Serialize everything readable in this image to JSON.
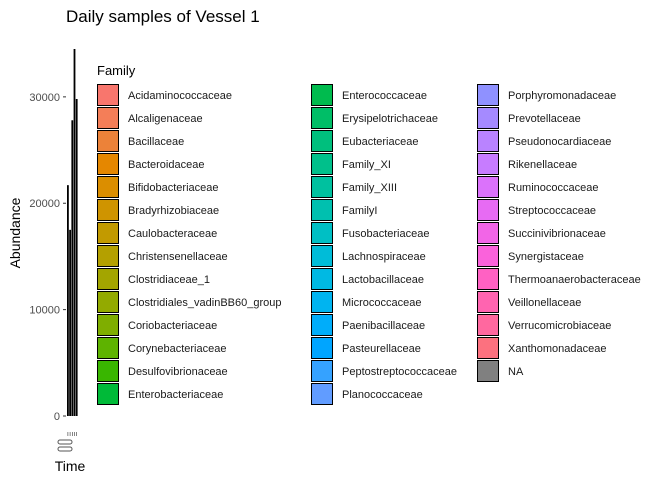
{
  "chart_data": {
    "type": "bar",
    "stacked": true,
    "title": "Daily samples of Vessel 1",
    "xlabel": "Time",
    "ylabel": "Abundance",
    "ylim": [
      0,
      34500
    ],
    "y_ticks": [
      0,
      10000,
      20000,
      30000
    ],
    "y_tick_labels": [
      "0",
      "10000",
      "20000",
      "30000"
    ],
    "x_tick_labels": [
      "",
      "",
      "",
      "",
      ""
    ],
    "totals": [
      21700,
      17500,
      27800,
      34500,
      29800
    ],
    "legend": {
      "title": "Family",
      "position": "right",
      "entries": [
        {
          "label": "Acidaminococcaceae",
          "color": "#F8766D"
        },
        {
          "label": "Alcaligenaceae",
          "color": "#F47E58"
        },
        {
          "label": "Bacillaceae",
          "color": "#EC8239"
        },
        {
          "label": "Bacteroidaceae",
          "color": "#E58700"
        },
        {
          "label": "Bifidobacteriaceae",
          "color": "#DB8E00"
        },
        {
          "label": "Bradyrhizobiaceae",
          "color": "#CF9400"
        },
        {
          "label": "Caulobacteraceae",
          "color": "#C29A00"
        },
        {
          "label": "Christensenellaceae",
          "color": "#B4A000"
        },
        {
          "label": "Clostridiaceae_1",
          "color": "#A3A500"
        },
        {
          "label": "Clostridiales_vadinBB60_group",
          "color": "#93AA00"
        },
        {
          "label": "Coriobacteriaceae",
          "color": "#7FAE00"
        },
        {
          "label": "Corynebacteriaceae",
          "color": "#5EB300"
        },
        {
          "label": "Desulfovibrionaceae",
          "color": "#39B600"
        },
        {
          "label": "Enterobacteriaceae",
          "color": "#00BA38"
        },
        {
          "label": "Enterococcaceae",
          "color": "#00BB4E"
        },
        {
          "label": "Erysipelotrichaceae",
          "color": "#00BE67"
        },
        {
          "label": "Eubacteriaceae",
          "color": "#00BF7D"
        },
        {
          "label": "Family_XI",
          "color": "#00C08B"
        },
        {
          "label": "Family_XIII",
          "color": "#00C19F"
        },
        {
          "label": "FamilyI",
          "color": "#00C0AF"
        },
        {
          "label": "Fusobacteriaceae",
          "color": "#00BFC4"
        },
        {
          "label": "Lachnospiraceae",
          "color": "#00BCD8"
        },
        {
          "label": "Lactobacillaceae",
          "color": "#00B9E3"
        },
        {
          "label": "Micrococcaceae",
          "color": "#00B4F0"
        },
        {
          "label": "Paenibacillaceae",
          "color": "#00ADFA"
        },
        {
          "label": "Pasteurellaceae",
          "color": "#00A5FF"
        },
        {
          "label": "Peptostreptococcaceae",
          "color": "#35A2FF"
        },
        {
          "label": "Planococcaceae",
          "color": "#619CFF"
        },
        {
          "label": "Porphyromonadaceae",
          "color": "#8F91FF"
        },
        {
          "label": "Prevotellaceae",
          "color": "#A58AFF"
        },
        {
          "label": "Pseudonocardiaceae",
          "color": "#B983FF"
        },
        {
          "label": "Rikenellaceae",
          "color": "#C77CFF"
        },
        {
          "label": "Ruminococcaceae",
          "color": "#DB72FB"
        },
        {
          "label": "Streptococcaceae",
          "color": "#E76BF3"
        },
        {
          "label": "Succinivibrionaceae",
          "color": "#F265E7"
        },
        {
          "label": "Synergistaceae",
          "color": "#FA62DB"
        },
        {
          "label": "Thermoanaerobacteraceae",
          "color": "#FF61C3"
        },
        {
          "label": "Veillonellaceae",
          "color": "#FF64B0"
        },
        {
          "label": "Verrucomicrobiaceae",
          "color": "#FF689F"
        },
        {
          "label": "Xanthomonadaceae",
          "color": "#FC717F"
        },
        {
          "label": "NA",
          "color": "#808080"
        }
      ]
    }
  }
}
